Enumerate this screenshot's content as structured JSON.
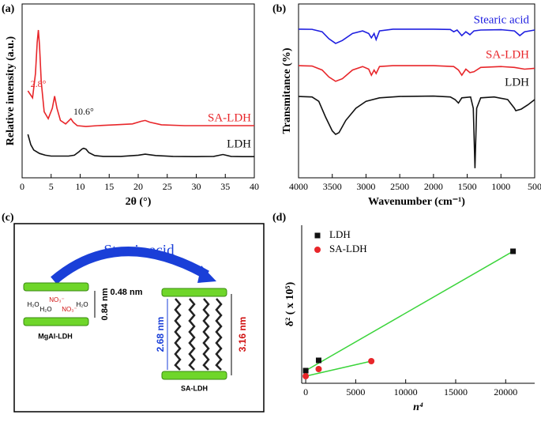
{
  "chart_data": [
    {
      "type": "line",
      "panel_label": "(a)",
      "x_label": "2θ (°)",
      "y_label": "Relative intensity (a.u.)",
      "xlim": [
        0,
        40
      ],
      "xticks": [
        0,
        5,
        10,
        15,
        20,
        25,
        30,
        35,
        40
      ],
      "ylim": [
        0,
        100
      ],
      "annotations": [
        "2.8°",
        "10.6°"
      ],
      "series": [
        {
          "name": "SA-LDH",
          "color": "#e8262a",
          "x": [
            1,
            1.8,
            2.3,
            2.6,
            2.8,
            3.0,
            3.3,
            3.8,
            4.5,
            5.2,
            5.6,
            6.0,
            6.6,
            7.5,
            8.1,
            8.4,
            8.8,
            9.5,
            11,
            13,
            16,
            19,
            20.5,
            21.2,
            22,
            24,
            28,
            32,
            36,
            40
          ],
          "values": [
            50,
            46,
            60,
            78,
            85,
            76,
            55,
            38,
            34,
            40,
            47,
            40,
            33,
            31,
            33,
            34,
            32,
            30,
            29.5,
            30,
            30.5,
            31,
            32.5,
            33,
            32,
            30.5,
            30,
            30,
            30,
            30
          ]
        },
        {
          "name": "LDH",
          "color": "#111111",
          "x": [
            1,
            1.5,
            2,
            3,
            4,
            5,
            6,
            7,
            8,
            9,
            9.8,
            10.3,
            10.6,
            11,
            11.5,
            12.5,
            14,
            17,
            20,
            21.2,
            23,
            26,
            30,
            33,
            34.6,
            36,
            38,
            40
          ],
          "values": [
            25,
            19,
            16,
            14,
            13,
            12.5,
            12.5,
            12.5,
            12.5,
            13,
            15,
            16.5,
            17,
            16.5,
            14.5,
            12.8,
            12.3,
            12.3,
            13,
            13.6,
            12.8,
            12.3,
            12.2,
            12.3,
            13.4,
            12.3,
            12.2,
            12.2
          ]
        }
      ]
    },
    {
      "type": "line",
      "panel_label": "(b)",
      "x_label": "Wavenumber (cm⁻¹)",
      "y_label": "Transmitance (%)",
      "xlim": [
        4000,
        500
      ],
      "xticks": [
        4000,
        3500,
        3000,
        2500,
        2000,
        1500,
        1000,
        500
      ],
      "ylim": [
        0,
        100
      ],
      "series": [
        {
          "name": "Stearic acid",
          "color": "#1f1fe0",
          "x": [
            4000,
            3800,
            3650,
            3550,
            3450,
            3350,
            3200,
            3050,
            2960,
            2920,
            2880,
            2850,
            2800,
            2600,
            2000,
            1750,
            1700,
            1650,
            1580,
            1520,
            1460,
            1400,
            1300,
            1000,
            800,
            720,
            650,
            500
          ],
          "values": [
            85.5,
            85.4,
            84,
            80,
            77.3,
            79,
            83,
            84.5,
            83,
            80.5,
            83,
            79.5,
            84.5,
            85.5,
            85.5,
            85.3,
            84,
            85,
            81.8,
            84,
            82.3,
            84.5,
            85,
            85.2,
            84.5,
            81.8,
            84,
            85
          ]
        },
        {
          "name": "SA-LDH",
          "color": "#e8262a",
          "x": [
            4000,
            3800,
            3650,
            3550,
            3450,
            3350,
            3200,
            3050,
            2960,
            2920,
            2880,
            2850,
            2800,
            2600,
            2000,
            1700,
            1630,
            1580,
            1520,
            1460,
            1400,
            1300,
            1000,
            800,
            650,
            500
          ],
          "values": [
            64.5,
            64.3,
            62,
            58,
            55.5,
            57,
            62,
            64,
            62.5,
            59,
            62,
            60,
            64,
            64.5,
            64.5,
            64,
            62,
            59,
            62.5,
            60.5,
            61,
            63.5,
            64,
            63.5,
            62.5,
            63
          ]
        },
        {
          "name": "LDH",
          "color": "#111111",
          "x": [
            4000,
            3800,
            3700,
            3600,
            3500,
            3450,
            3400,
            3300,
            3150,
            3000,
            2800,
            2500,
            2000,
            1750,
            1680,
            1630,
            1580,
            1450,
            1410,
            1385,
            1360,
            1300,
            1100,
            900,
            800,
            780,
            700,
            600,
            500
          ],
          "values": [
            46.8,
            46.5,
            44,
            35,
            27,
            25,
            26,
            33,
            40,
            44,
            46,
            46.8,
            47,
            46.5,
            45,
            43,
            46,
            46.5,
            40,
            5.5,
            40,
            46,
            46.5,
            45,
            40,
            38.6,
            39.5,
            42,
            45
          ]
        }
      ]
    },
    {
      "type": "scatter",
      "panel_label": "(d)",
      "x_label": "n⁴",
      "y_label": "δ² ( x 10⁵)",
      "xlim": [
        -400,
        22900
      ],
      "xticks": [
        0,
        5000,
        10000,
        15000,
        20000
      ],
      "ylim": [
        0,
        100
      ],
      "legend": "upper left",
      "series": [
        {
          "name": "LDH",
          "color": "#111111",
          "marker": "square",
          "x": [
            1,
            1296,
            20736
          ],
          "values": [
            8,
            14.5,
            83.5
          ]
        },
        {
          "name": "SA-LDH",
          "color": "#e8262a",
          "marker": "circle",
          "x": [
            1,
            1296,
            6561
          ],
          "values": [
            4.5,
            9,
            14
          ]
        }
      ],
      "fit_color": "#3ad43a"
    }
  ],
  "diagram": {
    "panel_label": "(c)",
    "title": "Stearic acid",
    "left": {
      "water": [
        "H₂O",
        "H₂O",
        "H₂O"
      ],
      "nitrate": [
        "NO₃⁻",
        "NO₃⁻"
      ],
      "spacing": "0.84 nm",
      "name": "MgAl-LDH"
    },
    "right": {
      "layer": "0.48 nm",
      "chain": "2.68 nm",
      "spacing": "3.16 nm",
      "name": "SA-LDH"
    }
  }
}
